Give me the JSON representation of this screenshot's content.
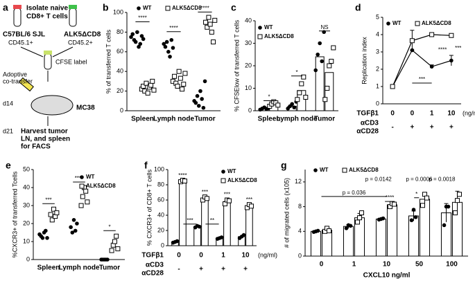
{
  "diagram": {
    "panel": "a",
    "texts": [
      "Isolate naive",
      "CD8+ T cells",
      "C57BL/6 SJL",
      "CD45.1+",
      "ALK5ΔCD8",
      "CD45.2+",
      "CFSE label",
      "Adoptive",
      "co-transfer",
      "d14",
      "MC38",
      "d21",
      "Harvest tumor",
      "LN, and spleen",
      "for FACS"
    ]
  },
  "chart_data": [
    {
      "panel": "b",
      "type": "strip",
      "ylabel": "% of transferred T cells",
      "categories": [
        "Spleen",
        "Lymph node",
        "Tumor"
      ],
      "series": [
        {
          "name": "WT",
          "marker": "circle",
          "color": "#000000",
          "values": [
            [
              75,
              78,
              72,
              70,
              80,
              65,
              68,
              76,
              73
            ],
            [
              68,
              65,
              70,
              60,
              55,
              72,
              64
            ],
            [
              10,
              8,
              15,
              5,
              20,
              12,
              3,
              30
            ]
          ]
        },
        {
          "name": "ALK5ΔCD8",
          "marker": "square",
          "color": "#000000",
          "values": [
            [
              22,
              25,
              20,
              28,
              18,
              24,
              26,
              30,
              21
            ],
            [
              30,
              35,
              28,
              25,
              40,
              33,
              22,
              27,
              38
            ],
            [
              90,
              85,
              95,
              88,
              80,
              70,
              92
            ]
          ]
        }
      ],
      "ylim": [
        0,
        100
      ],
      "yticks": [
        0,
        20,
        40,
        60,
        80,
        100
      ],
      "annotations": [
        "****",
        "****",
        "****"
      ]
    },
    {
      "panel": "c",
      "type": "bar",
      "ylabel": "% CFSElow of transferred T cells",
      "categories": [
        "Spleen",
        "Lymph node",
        "Tumor"
      ],
      "series": [
        {
          "name": "WT",
          "marker": "circle",
          "color": "#000000",
          "values": [
            1,
            2,
            24
          ],
          "points": [
            [
              0.5,
              1,
              1.5,
              0.8,
              1.2
            ],
            [
              1,
              2,
              3,
              1.5,
              4
            ],
            [
              18,
              25,
              30,
              22,
              35
            ]
          ]
        },
        {
          "name": "ALK5ΔCD8",
          "marker": "square",
          "color": "#000000",
          "values": [
            3,
            9,
            17
          ],
          "points": [
            [
              2,
              3,
              4,
              3.5,
              2.5
            ],
            [
              5,
              8,
              12,
              15,
              6
            ],
            [
              5,
              10,
              20,
              22,
              28
            ]
          ]
        }
      ],
      "ylim": [
        0,
        40
      ],
      "yticks": [
        0,
        10,
        20,
        30,
        40
      ],
      "annotations": [
        "*",
        "*",
        "NS"
      ]
    },
    {
      "panel": "d",
      "type": "line",
      "ylabel": "Replication index",
      "categories": [
        "0",
        "0",
        "1",
        "10"
      ],
      "row_labels": [
        "TGFβ1",
        "αCD3",
        "αCD28"
      ],
      "unit": "(ng/ml)",
      "signs": [
        "-",
        "+",
        "+",
        "+"
      ],
      "series": [
        {
          "name": "WT",
          "marker": "circle",
          "color": "#000000",
          "values": [
            1,
            3.1,
            2.15,
            2.5
          ],
          "errors": [
            0,
            0,
            0.1,
            0.3
          ]
        },
        {
          "name": "ALK5ΔCD8",
          "marker": "square",
          "color": "#000000",
          "values": [
            1,
            3.65,
            4.0,
            3.95
          ],
          "errors": [
            0,
            0.6,
            0,
            0
          ]
        }
      ],
      "ylim": [
        0,
        5
      ],
      "yticks": [
        0,
        1,
        2,
        3,
        4,
        5
      ],
      "annotations": [
        "****",
        "***",
        "***"
      ]
    },
    {
      "panel": "e",
      "type": "strip",
      "ylabel": "%CXCR3+ of transferred Tcells",
      "categories": [
        "Spleen",
        "Lymph node",
        "Tumor"
      ],
      "series": [
        {
          "name": "WT",
          "marker": "circle",
          "color": "#000000",
          "values": [
            [
              14,
              13,
              12,
              15,
              16,
              12
            ],
            [
              18,
              15,
              22,
              16,
              20
            ],
            [
              0,
              0,
              0,
              0,
              0
            ]
          ]
        },
        {
          "name": "ALK5ΔCD8",
          "marker": "square",
          "color": "#000000",
          "values": [
            [
              25,
              22,
              28,
              24,
              26
            ],
            [
              30,
              35,
              40,
              38,
              32
            ],
            [
              5,
              8,
              10,
              13,
              6
            ]
          ]
        }
      ],
      "ylim": [
        0,
        50
      ],
      "yticks": [
        0,
        10,
        20,
        30,
        40,
        50
      ],
      "annotations": [
        "***",
        "****",
        "*"
      ]
    },
    {
      "panel": "f",
      "type": "bar",
      "ylabel": "% CXCR3+ of CD8+ T cells",
      "categories": [
        "0",
        "0",
        "1",
        "10"
      ],
      "row_labels": [
        "TGFβ1",
        "αCD3",
        "αCD28"
      ],
      "unit": "(ng/ml)",
      "signs": [
        "-",
        "+",
        "+",
        "+"
      ],
      "series": [
        {
          "name": "WT",
          "marker": "circle",
          "color": "#000000",
          "values": [
            5,
            25,
            10,
            12
          ],
          "points": [
            [
              4,
              5,
              6
            ],
            [
              24,
              26,
              25
            ],
            [
              9,
              10,
              11
            ],
            [
              10,
              12,
              14
            ]
          ]
        },
        {
          "name": "ALK5ΔCD8",
          "marker": "square",
          "color": "#000000",
          "values": [
            85,
            62,
            58,
            52
          ],
          "points": [
            [
              84,
              86,
              85
            ],
            [
              60,
              64,
              62
            ],
            [
              55,
              60,
              59
            ],
            [
              50,
              54,
              52
            ]
          ]
        }
      ],
      "ylim": [
        0,
        100
      ],
      "yticks": [
        0,
        20,
        40,
        60,
        80,
        100
      ],
      "annotations": [
        "****",
        "***",
        "***",
        "***",
        "***",
        "**"
      ]
    },
    {
      "panel": "g",
      "type": "bar",
      "ylabel": "# of migrated cells (x105)",
      "xlabel": "CXCL10 ng/ml",
      "categories": [
        "0",
        "1",
        "10",
        "50",
        "100"
      ],
      "series": [
        {
          "name": "WT",
          "marker": "circle",
          "color": "#000000",
          "values": [
            4,
            4.8,
            6,
            6.5,
            7
          ],
          "errors": [
            0.1,
            0.3,
            0.1,
            0.8,
            1.5
          ],
          "points": [
            [
              3.9,
              4,
              4.1
            ],
            [
              4.5,
              5,
              4.9
            ],
            [
              5.9,
              6,
              6.1
            ],
            [
              5.8,
              7.5,
              6.3
            ],
            [
              5,
              8,
              8
            ]
          ]
        },
        {
          "name": "ALK5ΔCD8",
          "marker": "square",
          "color": "#000000",
          "values": [
            4.2,
            6.2,
            8.3,
            9.2,
            8.7
          ],
          "errors": [
            0.3,
            0.7,
            0.4,
            1,
            1.8
          ],
          "points": [
            [
              4,
              4.5,
              4.1
            ],
            [
              5.5,
              6.2,
              7
            ],
            [
              8,
              8.5,
              8.4
            ],
            [
              8.2,
              10,
              9.4
            ],
            [
              7,
              9,
              10
            ]
          ]
        }
      ],
      "ylim": [
        0,
        14
      ],
      "yticks": [
        0,
        4,
        8,
        12
      ],
      "annotations": [
        "p = 0.036",
        "p = 0.0142",
        "p = 0.0006",
        "p = 0.0018",
        "****",
        "*"
      ]
    }
  ]
}
